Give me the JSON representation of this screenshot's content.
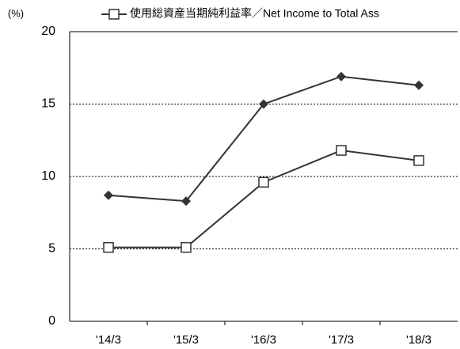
{
  "chart_data": {
    "type": "line",
    "y_axis_label": "(%)",
    "categories": [
      "'14/3",
      "'15/3",
      "'16/3",
      "'17/3",
      "'18/3"
    ],
    "series": [
      {
        "color": "#333333",
        "marker": "diamond",
        "values": [
          8.7,
          8.3,
          15.0,
          16.9,
          16.3
        ]
      },
      {
        "name": "使用総資産当期純利益率／Net Income to Total Ass",
        "color": "#333333",
        "marker": "square",
        "values": [
          5.1,
          5.1,
          9.6,
          11.8,
          11.1
        ]
      }
    ],
    "ylim": [
      0,
      20
    ],
    "yticks": [
      0,
      5,
      10,
      15,
      20
    ],
    "grid": true,
    "legend": "top"
  }
}
